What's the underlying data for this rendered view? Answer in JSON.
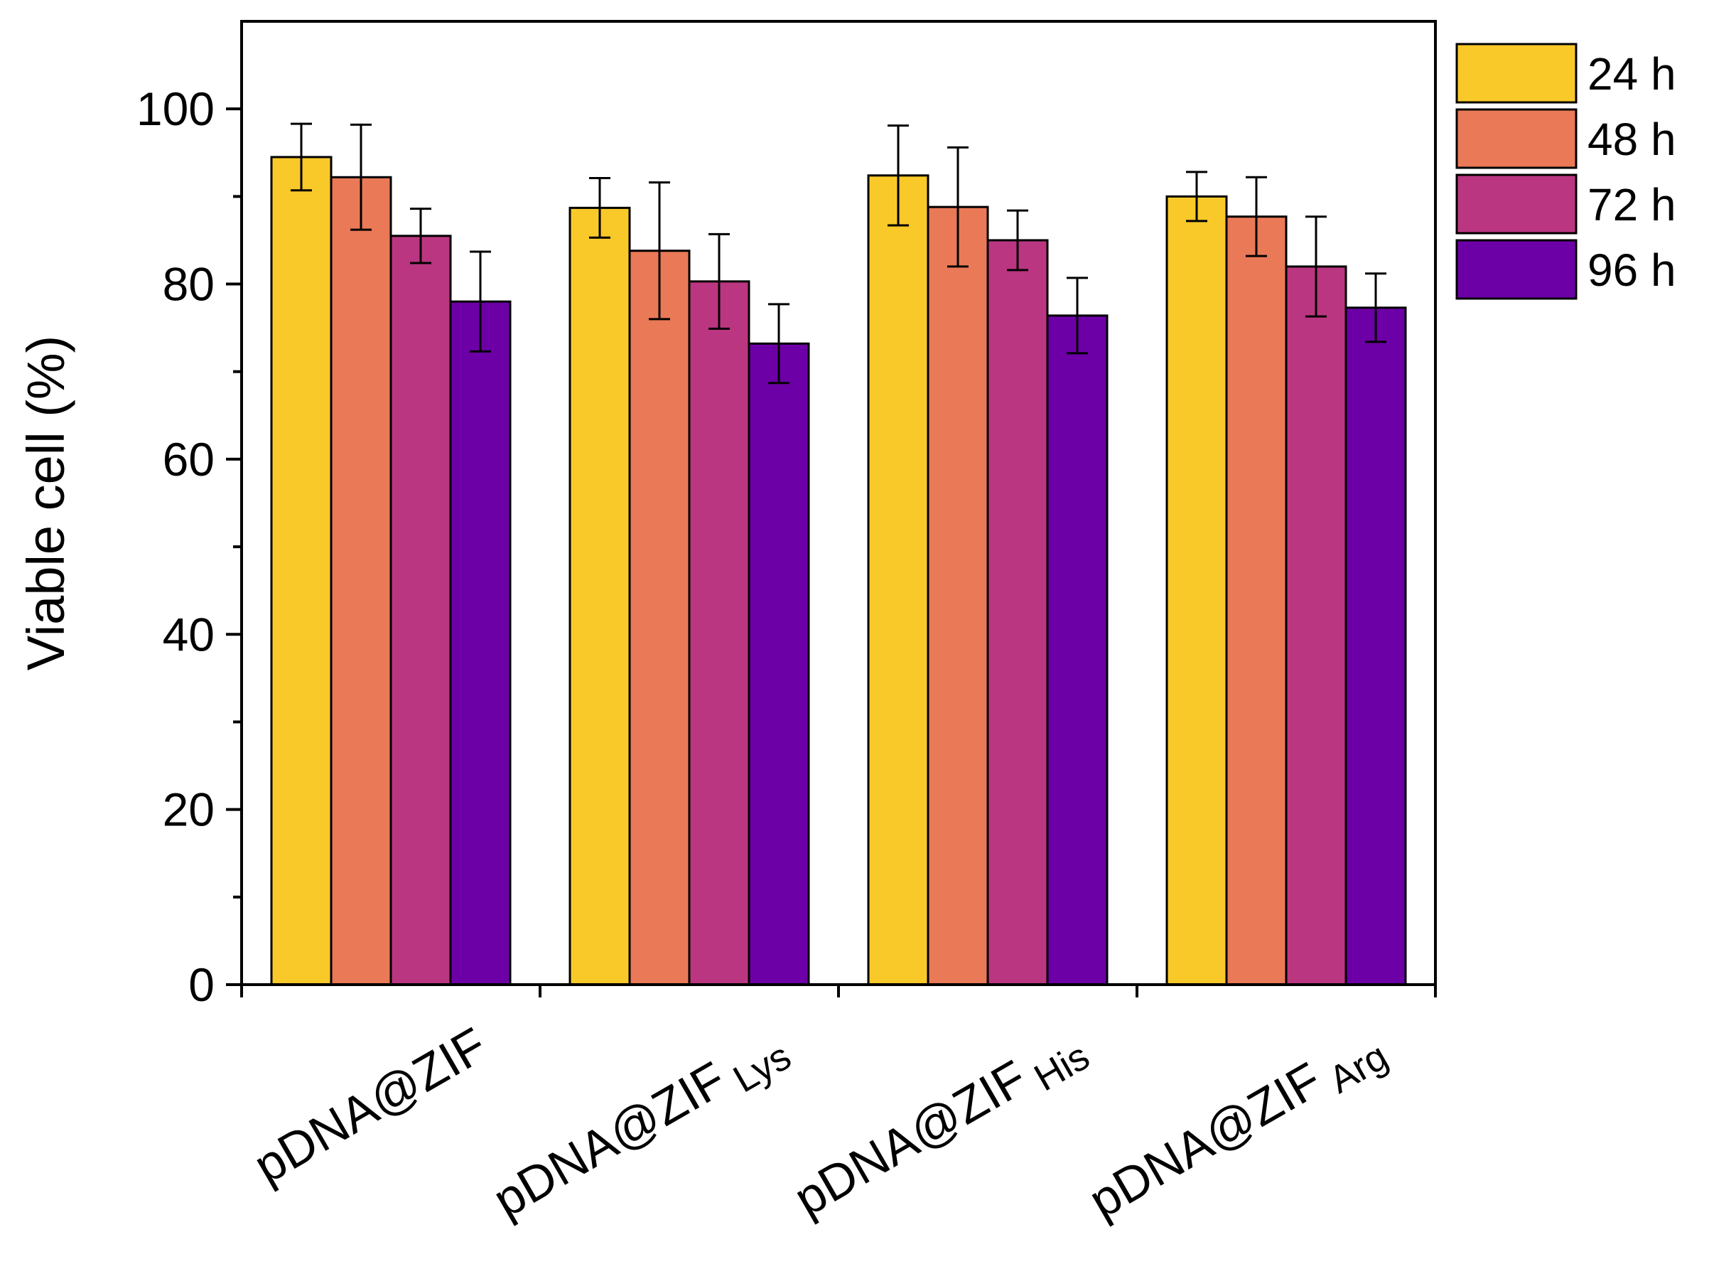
{
  "chart_data": {
    "type": "bar",
    "ylabel": "Viable cell (%)",
    "xlabel": "",
    "ylim": [
      0,
      110
    ],
    "yticks": [
      0,
      20,
      40,
      60,
      80,
      100
    ],
    "categories": [
      {
        "main": "pDNA@ZIF",
        "sub": ""
      },
      {
        "main": "pDNA@ZIF",
        "sub": "Lys"
      },
      {
        "main": "pDNA@ZIF",
        "sub": "His"
      },
      {
        "main": "pDNA@ZIF",
        "sub": "Arg"
      }
    ],
    "series": [
      {
        "name": "24 h",
        "color": "#F9C92A",
        "values": [
          94.5,
          88.7,
          92.4,
          90.0
        ],
        "errors": [
          3.8,
          3.4,
          5.7,
          2.8
        ]
      },
      {
        "name": "48 h",
        "color": "#EA7957",
        "values": [
          92.2,
          83.8,
          88.8,
          87.7
        ],
        "errors": [
          6.0,
          7.8,
          6.8,
          4.5
        ]
      },
      {
        "name": "72 h",
        "color": "#BB3681",
        "values": [
          85.5,
          80.3,
          85.0,
          82.0
        ],
        "errors": [
          3.1,
          5.4,
          3.4,
          5.7
        ]
      },
      {
        "name": "96 h",
        "color": "#6C00A6",
        "values": [
          78.0,
          73.2,
          76.4,
          77.3
        ],
        "errors": [
          5.7,
          4.5,
          4.3,
          3.9
        ]
      }
    ],
    "legend": "right-top-outside",
    "grid": false
  }
}
